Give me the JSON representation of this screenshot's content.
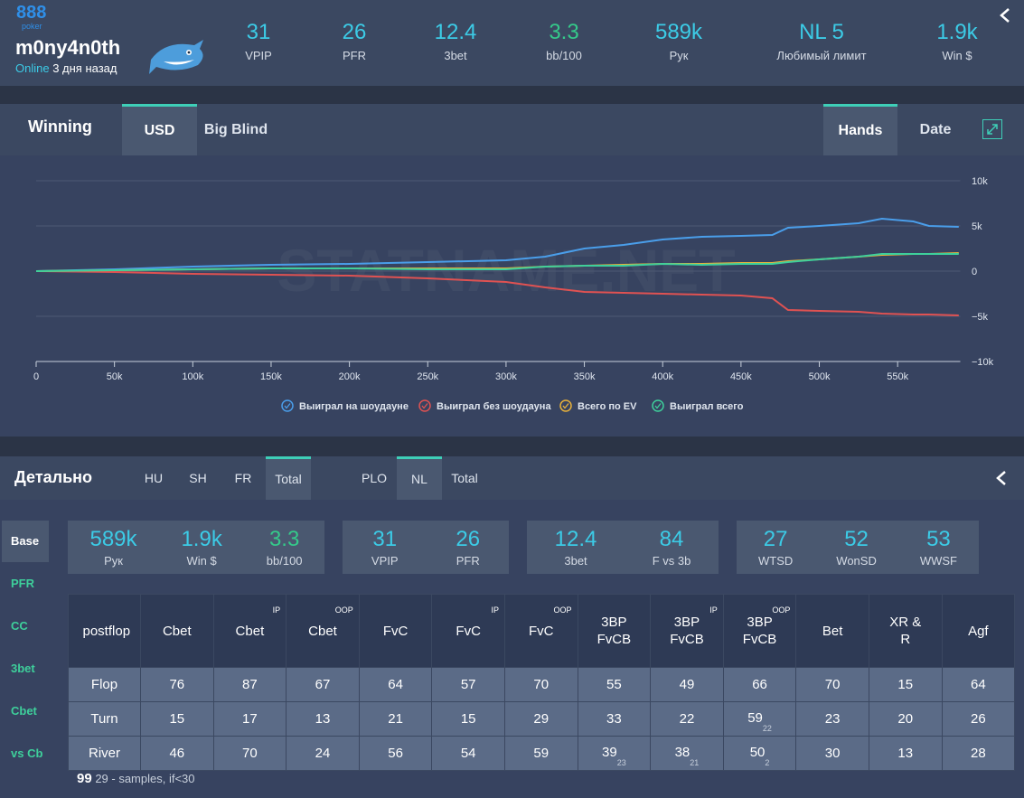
{
  "header": {
    "logo": "888",
    "logo_sub": "poker",
    "username": "m0ny4n0th",
    "status": "Online",
    "last_seen": "3 дня назад",
    "stats": [
      {
        "value": "31",
        "label": "VPIP"
      },
      {
        "value": "26",
        "label": "PFR"
      },
      {
        "value": "12.4",
        "label": "3bet"
      },
      {
        "value": "3.3",
        "label": "bb/100",
        "color": "#35c98a"
      },
      {
        "value": "589k",
        "label": "Рук"
      },
      {
        "value": "NL 5",
        "label": "Любимый лимит"
      },
      {
        "value": "1.9k",
        "label": "Win $"
      }
    ]
  },
  "winning": {
    "title": "Winning",
    "currency_tabs": [
      "USD",
      "Big Blind"
    ],
    "active_currency": 0,
    "axis_tabs": [
      "Hands",
      "Date"
    ],
    "active_axis": 0
  },
  "chart_data": {
    "type": "line",
    "watermark": "STATNAME.NET",
    "x": [
      0,
      50000,
      100000,
      150000,
      200000,
      250000,
      300000,
      325000,
      350000,
      375000,
      400000,
      425000,
      450000,
      470000,
      480000,
      500000,
      525000,
      540000,
      560000,
      570000,
      589000
    ],
    "xlim": [
      0,
      590000
    ],
    "xticks": [
      0,
      {
        "value": 50000,
        "label": "50k"
      },
      {
        "value": 100000,
        "label": "100k"
      },
      {
        "value": 150000,
        "label": "150k"
      },
      {
        "value": 200000,
        "label": "200k"
      },
      {
        "value": 250000,
        "label": "250k"
      },
      {
        "value": 300000,
        "label": "300k"
      },
      {
        "value": 350000,
        "label": "350k"
      },
      {
        "value": 400000,
        "label": "400k"
      },
      {
        "value": 450000,
        "label": "450k"
      },
      {
        "value": 500000,
        "label": "500k"
      },
      {
        "value": 550000,
        "label": "550k"
      }
    ],
    "ylim": [
      -10000,
      10000
    ],
    "yticks": [
      {
        "value": -10000,
        "label": "−10k"
      },
      {
        "value": -5000,
        "label": "−5k"
      },
      0,
      {
        "value": 5000,
        "label": "5k"
      },
      {
        "value": 10000,
        "label": "10k"
      }
    ],
    "grid": true,
    "legend": "bottom",
    "series": [
      {
        "name": "Выиграл на шоудауне",
        "color": "#4a9eea",
        "values": [
          0,
          200,
          500,
          700,
          800,
          1000,
          1200,
          1600,
          2500,
          2900,
          3500,
          3800,
          3900,
          4000,
          4800,
          5000,
          5300,
          5800,
          5500,
          5000,
          4900
        ]
      },
      {
        "name": "Выиграл без шоудауна",
        "color": "#e05252",
        "values": [
          0,
          -100,
          -300,
          -400,
          -500,
          -800,
          -1200,
          -1800,
          -2300,
          -2400,
          -2500,
          -2600,
          -2700,
          -3000,
          -4300,
          -4400,
          -4500,
          -4700,
          -4800,
          -4800,
          -4900
        ]
      },
      {
        "name": "Всего по EV",
        "color": "#e8b13a",
        "values": [
          0,
          100,
          200,
          300,
          300,
          300,
          300,
          500,
          600,
          700,
          800,
          800,
          900,
          900,
          1100,
          1300,
          1600,
          1800,
          1900,
          1900,
          2000
        ]
      },
      {
        "name": "Выиграл всего",
        "color": "#3ecf9b",
        "values": [
          0,
          100,
          200,
          300,
          300,
          200,
          200,
          500,
          600,
          600,
          800,
          700,
          800,
          800,
          1000,
          1300,
          1600,
          1900,
          1900,
          1900,
          1900
        ]
      }
    ]
  },
  "details": {
    "title": "Детально",
    "game_size_tabs": [
      "HU",
      "SH",
      "FR",
      "Total"
    ],
    "active_game_size": 3,
    "game_type_tabs": [
      "PLO",
      "NL",
      "Total"
    ],
    "active_game_type": 1,
    "sidebar": [
      "Base",
      "PFR",
      "CC",
      "3bet",
      "Cbet",
      "vs Cb"
    ],
    "active_sidebar": 0,
    "stat_groups": [
      [
        {
          "value": "589k",
          "label": "Рук"
        },
        {
          "value": "1.9k",
          "label": "Win $"
        },
        {
          "value": "3.3",
          "label": "bb/100",
          "color": "#35c98a"
        }
      ],
      [
        {
          "value": "31",
          "label": "VPIP"
        },
        {
          "value": "26",
          "label": "PFR"
        }
      ],
      [
        {
          "value": "12.4",
          "label": "3bet"
        },
        {
          "value": "84",
          "label": "F vs 3b"
        }
      ],
      [
        {
          "value": "27",
          "label": "WTSD"
        },
        {
          "value": "52",
          "label": "WonSD"
        },
        {
          "value": "53",
          "label": "WWSF"
        }
      ]
    ],
    "table": {
      "columns": [
        {
          "label": "postflop"
        },
        {
          "label": "Cbet"
        },
        {
          "label": "Cbet",
          "tag": "IP"
        },
        {
          "label": "Cbet",
          "tag": "OOP"
        },
        {
          "label": "FvC"
        },
        {
          "label": "FvC",
          "tag": "IP"
        },
        {
          "label": "FvC",
          "tag": "OOP"
        },
        {
          "label": "3BP FvCB"
        },
        {
          "label": "3BP FvCB",
          "tag": "IP"
        },
        {
          "label": "3BP FvCB",
          "tag": "OOP"
        },
        {
          "label": "Bet"
        },
        {
          "label": "XR & R"
        },
        {
          "label": "Agf"
        }
      ],
      "rows": [
        {
          "street": "Flop",
          "cells": [
            "76",
            "87",
            "67",
            "64",
            "57",
            "70",
            "55",
            "49",
            "66",
            "70",
            "15",
            "64"
          ]
        },
        {
          "street": "Turn",
          "cells": [
            "15",
            "17",
            "13",
            "21",
            "15",
            "29",
            "33",
            "22",
            {
              "value": "59",
              "samples": "22"
            },
            "23",
            "20",
            "26"
          ]
        },
        {
          "street": "River",
          "cells": [
            "46",
            "70",
            "24",
            "56",
            "54",
            "59",
            {
              "value": "39",
              "samples": "23"
            },
            {
              "value": "38",
              "samples": "21"
            },
            {
              "value": "50",
              "samples": "2"
            },
            "30",
            "13",
            "28"
          ]
        }
      ]
    },
    "footnote": {
      "marker": "99",
      "text": "29 - samples, if<30"
    }
  }
}
